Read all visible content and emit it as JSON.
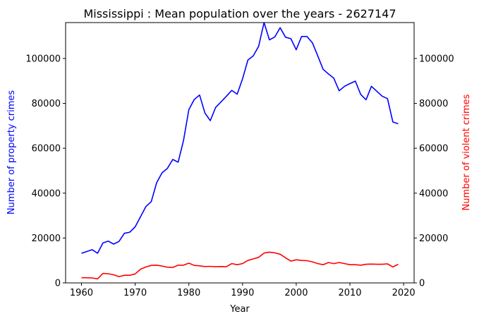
{
  "chart_data": {
    "type": "line",
    "title": "Mississippi : Mean population over the years - 2627147",
    "xlabel": "Year",
    "ylabel_left": "Number of property crimes",
    "ylabel_right": "Number of violent crimes",
    "xlim": [
      1957.05,
      2021.95
    ],
    "ylim": [
      0,
      116000
    ],
    "x_ticks": [
      1960,
      1970,
      1980,
      1990,
      2000,
      2010,
      2020
    ],
    "y_ticks": [
      0,
      20000,
      40000,
      60000,
      80000,
      100000
    ],
    "grid": false,
    "legend": "none",
    "colors": {
      "property": "#0000ff",
      "violent": "#ff0000",
      "axis": "#000000"
    },
    "x": [
      1960,
      1961,
      1962,
      1963,
      1964,
      1965,
      1966,
      1967,
      1968,
      1969,
      1970,
      1971,
      1972,
      1973,
      1974,
      1975,
      1976,
      1977,
      1978,
      1979,
      1980,
      1981,
      1982,
      1983,
      1984,
      1985,
      1986,
      1987,
      1988,
      1989,
      1990,
      1991,
      1992,
      1993,
      1994,
      1995,
      1996,
      1997,
      1998,
      1999,
      2000,
      2001,
      2002,
      2003,
      2004,
      2005,
      2006,
      2007,
      2008,
      2009,
      2010,
      2011,
      2012,
      2013,
      2014,
      2015,
      2016,
      2017,
      2018,
      2019
    ],
    "series": [
      {
        "axis": "left",
        "values": [
          13200,
          14000,
          14800,
          13200,
          17800,
          18600,
          17300,
          18500,
          22100,
          22600,
          25000,
          29500,
          34000,
          36200,
          44600,
          49000,
          51000,
          55000,
          53800,
          63400,
          77200,
          81700,
          83700,
          75700,
          72300,
          78200,
          80700,
          83200,
          85800,
          84100,
          90900,
          99300,
          101200,
          105400,
          116000,
          108300,
          109600,
          113700,
          109500,
          108800,
          103900,
          109800,
          109800,
          107000,
          101200,
          95200,
          93100,
          91200,
          85600,
          87600,
          88800,
          89900,
          84000,
          81600,
          87600,
          85400,
          83200,
          82100,
          71700,
          70900
        ]
      },
      {
        "axis": "right",
        "values": [
          2300,
          2300,
          2200,
          1800,
          4200,
          4100,
          3600,
          2800,
          3400,
          3400,
          4000,
          6100,
          7100,
          7800,
          7900,
          7500,
          7000,
          6900,
          7900,
          7900,
          8800,
          7800,
          7600,
          7300,
          7400,
          7200,
          7300,
          7200,
          8600,
          8100,
          8600,
          10000,
          10700,
          11400,
          13300,
          13700,
          13400,
          12800,
          11200,
          9700,
          10300,
          10000,
          9900,
          9400,
          8600,
          8100,
          9100,
          8600,
          9100,
          8600,
          8100,
          8100,
          7900,
          8300,
          8400,
          8300,
          8300,
          8500,
          7100,
          8300
        ]
      }
    ]
  }
}
